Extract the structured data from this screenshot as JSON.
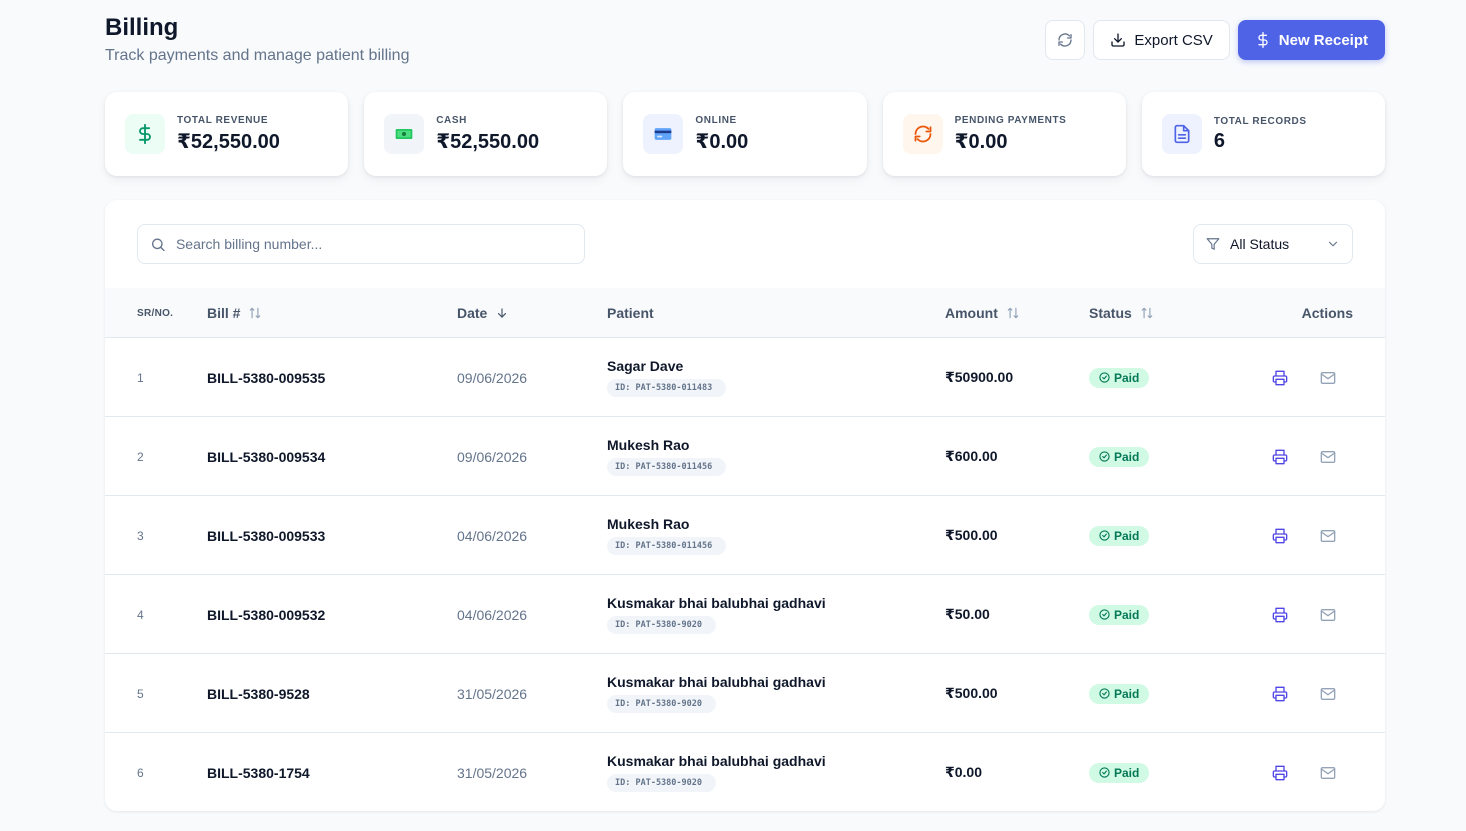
{
  "header": {
    "title": "Billing",
    "subtitle": "Track payments and manage patient billing",
    "export_label": "Export CSV",
    "new_receipt_label": "New Receipt"
  },
  "stats": [
    {
      "label": "TOTAL REVENUE",
      "value": "₹52,550.00",
      "icon": "dollar-icon"
    },
    {
      "label": "CASH",
      "value": "₹52,550.00",
      "icon": "cash-icon"
    },
    {
      "label": "ONLINE",
      "value": "₹0.00",
      "icon": "card-icon"
    },
    {
      "label": "PENDING PAYMENTS",
      "value": "₹0.00",
      "icon": "refresh-icon"
    },
    {
      "label": "TOTAL RECORDS",
      "value": "6",
      "icon": "document-icon"
    }
  ],
  "search": {
    "placeholder": "Search billing number..."
  },
  "filter": {
    "selected": "All Status"
  },
  "table": {
    "columns": {
      "sr": "SR/NO.",
      "bill": "Bill #",
      "date": "Date",
      "patient": "Patient",
      "amount": "Amount",
      "status": "Status",
      "actions": "Actions"
    },
    "rows": [
      {
        "sr": "1",
        "bill": "BILL-5380-009535",
        "date": "09/06/2026",
        "patient": "Sagar Dave",
        "patient_id": "ID: PAT-5380-011483",
        "amount": "₹50900.00",
        "status": "Paid"
      },
      {
        "sr": "2",
        "bill": "BILL-5380-009534",
        "date": "09/06/2026",
        "patient": "Mukesh Rao",
        "patient_id": "ID: PAT-5380-011456",
        "amount": "₹600.00",
        "status": "Paid"
      },
      {
        "sr": "3",
        "bill": "BILL-5380-009533",
        "date": "04/06/2026",
        "patient": "Mukesh Rao",
        "patient_id": "ID: PAT-5380-011456",
        "amount": "₹500.00",
        "status": "Paid"
      },
      {
        "sr": "4",
        "bill": "BILL-5380-009532",
        "date": "04/06/2026",
        "patient": "Kusmakar bhai balubhai gadhavi",
        "patient_id": "ID: PAT-5380-9020",
        "amount": "₹50.00",
        "status": "Paid"
      },
      {
        "sr": "5",
        "bill": "BILL-5380-9528",
        "date": "31/05/2026",
        "patient": "Kusmakar bhai balubhai gadhavi",
        "patient_id": "ID: PAT-5380-9020",
        "amount": "₹500.00",
        "status": "Paid"
      },
      {
        "sr": "6",
        "bill": "BILL-5380-1754",
        "date": "31/05/2026",
        "patient": "Kusmakar bhai balubhai gadhavi",
        "patient_id": "ID: PAT-5380-9020",
        "amount": "₹0.00",
        "status": "Paid"
      }
    ]
  },
  "colors": {
    "primary": "#4f63e7",
    "paid_bg": "#d1fae5",
    "paid_text": "#047857"
  }
}
